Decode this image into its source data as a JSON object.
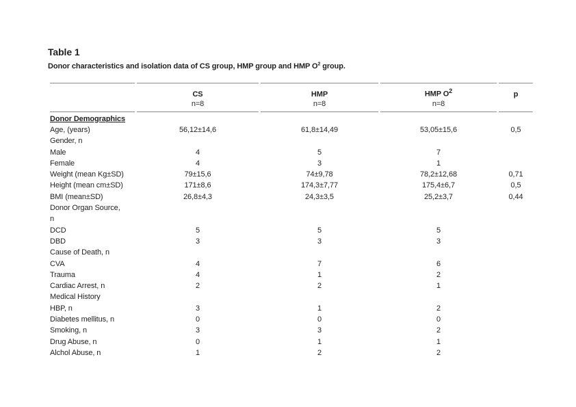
{
  "doc": {
    "title": "Table 1",
    "caption": {
      "text": "Donor characteristics and isolation data of CS group, HMP group and HMP O",
      "sup": "2",
      "suffix": " group."
    }
  },
  "table": {
    "columns": [
      {
        "label": "",
        "sub": ""
      },
      {
        "label": "CS",
        "sub": "n=8"
      },
      {
        "label": "HMP",
        "sub": "n=8"
      },
      {
        "label": "HMP O",
        "sup": "2",
        "sub": "n=8"
      },
      {
        "label": "p",
        "sub": ""
      }
    ],
    "rows": [
      {
        "label": "Donor Demographics",
        "section": true,
        "values": [
          "",
          "",
          "",
          ""
        ]
      },
      {
        "label": "Age, (years)",
        "values": [
          "56,12±14,6",
          "61,8±14,49",
          "53,05±15,6",
          "0,5"
        ]
      },
      {
        "label": "Gender, n",
        "values": [
          "",
          "",
          "",
          ""
        ]
      },
      {
        "label": "Male",
        "values": [
          "4",
          "5",
          "7",
          ""
        ]
      },
      {
        "label": "Female",
        "values": [
          "4",
          "3",
          "1",
          ""
        ]
      },
      {
        "label": "Weight (mean Kg±SD)",
        "values": [
          "79±15,6",
          "74±9,78",
          "78,2±12,68",
          "0,71"
        ]
      },
      {
        "label": "Height (mean cm±SD)",
        "values": [
          "171±8,6",
          "174,3±7,77",
          "175,4±6,7",
          "0,5"
        ]
      },
      {
        "label": "BMI (mean±SD)",
        "values": [
          "26,8±4,3",
          "24,3±3,5",
          "25,2±3,7",
          "0,44"
        ]
      },
      {
        "label": "Donor Organ Source,\nn",
        "values": [
          "",
          "",
          "",
          ""
        ]
      },
      {
        "label": "DCD",
        "values": [
          "5",
          "5",
          "5",
          ""
        ]
      },
      {
        "label": "DBD",
        "values": [
          "3",
          "3",
          "3",
          ""
        ]
      },
      {
        "label": "Cause of Death, n",
        "values": [
          "",
          "",
          "",
          ""
        ]
      },
      {
        "label": "CVA",
        "values": [
          "4",
          "7",
          "6",
          ""
        ]
      },
      {
        "label": "Trauma",
        "values": [
          "4",
          "1",
          "2",
          ""
        ]
      },
      {
        "label": "Cardiac Arrest, n",
        "values": [
          "2",
          "2",
          "1",
          ""
        ]
      },
      {
        "label": "Medical History",
        "values": [
          "",
          "",
          "",
          ""
        ]
      },
      {
        "label": "HBP, n",
        "values": [
          "3",
          "1",
          "2",
          ""
        ]
      },
      {
        "label": "Diabetes mellitus, n",
        "values": [
          "0",
          "0",
          "0",
          ""
        ]
      },
      {
        "label": "Smoking, n",
        "values": [
          "3",
          "3",
          "2",
          ""
        ]
      },
      {
        "label": "Drug Abuse, n",
        "values": [
          "0",
          "1",
          "1",
          ""
        ]
      },
      {
        "label": "Alchol Abuse, n",
        "values": [
          "1",
          "2",
          "2",
          ""
        ]
      }
    ]
  },
  "colors": {
    "text": "#1f1f1f",
    "rule": "#8c8c8c",
    "background": "#ffffff"
  }
}
